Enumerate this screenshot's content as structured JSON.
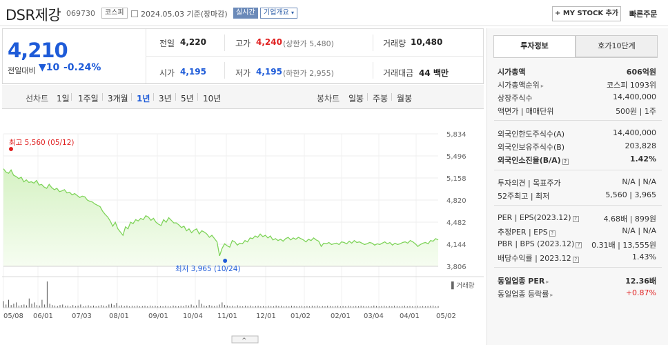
{
  "header": {
    "name": "DSR제강",
    "code": "069730",
    "market": "코스피",
    "date_text": "2024.05.03  기준(장마감)",
    "realtime": "실시간",
    "company_overview": "기업개요",
    "mystock": "+ MY STOCK 추가",
    "quick_order": "빠른주문"
  },
  "summary": {
    "price": "4,210",
    "change_label": "전일대비",
    "change": "10",
    "change_pct": "-0.24%",
    "prev_label": "전일",
    "prev": "4,220",
    "high_label": "고가",
    "high": "4,240",
    "upper_limit": "(상한가 5,480)",
    "volume_label": "거래량",
    "volume": "10,480",
    "open_label": "시가",
    "open": "4,195",
    "low_label": "저가",
    "low": "4,195",
    "lower_limit": "(하한가 2,955)",
    "amount_label": "거래대금",
    "amount": "44 백만"
  },
  "tabs": {
    "line_chart": "선차트",
    "periods": [
      "1일",
      "1주일",
      "3개월",
      "1년",
      "3년",
      "5년",
      "10년"
    ],
    "selected": "1년",
    "candle_chart": "봉차트",
    "candles": [
      "일봉",
      "주봉",
      "월봉"
    ]
  },
  "chart_data": {
    "type": "area",
    "y_ticks": [
      "5,834",
      "5,496",
      "5,158",
      "4,820",
      "4,482",
      "4,144",
      "3,806"
    ],
    "ylim": [
      3806,
      5834
    ],
    "x_ticks": [
      "05/08",
      "06/01",
      "07/03",
      "08/01",
      "09/01",
      "10/04",
      "11/01",
      "12/01",
      "01/02",
      "02/01",
      "03/04",
      "04/01",
      "05/02"
    ],
    "high_label": "최고 5,560 (05/12)",
    "low_label": "최저 3,965 (10/24)",
    "volume_label": "거래량",
    "series": [
      {
        "values": [
          5300,
          5250,
          5230,
          5280,
          5200,
          5180,
          5150,
          5170,
          5100,
          5130,
          5090,
          5100,
          5080,
          5120,
          5050,
          5060,
          5020,
          5000,
          5060,
          5010,
          4980,
          5000,
          4950,
          4960,
          4980,
          4930,
          4940,
          4900,
          4920,
          4890,
          4860,
          4880,
          4870,
          4820,
          4800,
          4790,
          4760,
          4740,
          4720,
          4650,
          4600,
          4560,
          4500,
          4420,
          4480,
          4380,
          4330,
          4280,
          4410,
          4380,
          4480,
          4460,
          4520,
          4500,
          4540,
          4520,
          4580,
          4560,
          4510,
          4540,
          4480,
          4450,
          4430,
          4520,
          4480,
          4550,
          4510,
          4470,
          4470,
          4440,
          4400,
          4420,
          4350,
          4380,
          4320,
          4360,
          4380,
          4300,
          4350,
          4330,
          4300,
          4250,
          4280,
          4230,
          4180,
          3965,
          4080,
          4150,
          4120,
          4100,
          4200,
          4180,
          4130,
          4160,
          4150,
          4200,
          4180,
          4240,
          4230,
          4270,
          4250,
          4300,
          4260,
          4280,
          4240,
          4270,
          4210,
          4230,
          4200,
          4220,
          4190,
          4230,
          4250,
          4210,
          4240,
          4220,
          4250,
          4230,
          4210,
          4180,
          4220,
          4200,
          4240,
          4210,
          4190,
          4110,
          4160,
          4150,
          4170,
          4140,
          4150,
          4160,
          4140,
          4180,
          4170,
          4150,
          4190,
          4160,
          4200,
          4170,
          4180,
          4160,
          4140,
          4150,
          4170,
          4160,
          4130,
          4150,
          4140,
          4160,
          4180,
          4150,
          4170,
          4130,
          4160,
          4140,
          4150,
          4170,
          4180,
          4160,
          4200,
          4180,
          4150,
          4110,
          4140,
          4160,
          4170,
          4150,
          4200,
          4190,
          4230,
          4210
        ]
      }
    ],
    "volume": [
      0.25,
      0.12,
      0.3,
      0.1,
      0.15,
      0.2,
      0.08,
      0.1,
      0.12,
      0.09,
      0.35,
      0.15,
      0.2,
      0.1,
      0.08,
      0.3,
      0.12,
      1.0,
      0.15,
      0.1,
      0.08,
      0.06,
      0.1,
      0.12,
      0.07,
      0.08,
      0.05,
      0.1,
      0.06,
      0.08,
      0.12,
      0.05,
      0.07,
      0.09,
      0.06,
      0.08,
      0.05,
      0.07,
      0.1,
      0.08,
      0.06,
      0.12,
      0.15,
      0.1,
      0.18,
      0.07,
      0.09,
      0.06,
      0.08,
      0.05,
      0.07,
      0.06,
      0.08,
      0.05,
      0.06,
      0.07,
      0.05,
      0.08,
      0.06,
      0.07,
      0.05,
      0.06,
      0.05,
      0.07,
      0.06,
      0.05,
      0.08,
      0.06,
      0.05,
      0.07,
      0.06,
      0.1,
      0.08,
      0.12,
      0.07,
      0.09,
      0.3,
      0.15,
      0.08,
      0.06,
      0.1,
      0.07,
      0.06,
      0.08,
      0.12,
      0.2,
      0.1,
      0.08,
      0.06,
      0.07,
      0.05,
      0.09,
      0.06,
      0.05,
      0.07,
      0.06,
      0.08,
      0.05,
      0.06,
      0.07,
      0.05,
      0.06,
      0.05,
      0.07,
      0.06,
      0.05,
      0.08,
      0.06,
      0.07,
      0.05,
      0.06,
      0.05,
      0.07,
      0.06,
      0.05,
      0.06,
      0.07,
      0.05,
      0.06,
      0.05,
      0.07,
      0.06,
      0.08,
      0.05,
      0.06,
      0.05,
      0.07,
      0.06,
      0.05,
      0.06,
      0.07,
      0.05,
      0.06,
      0.05,
      0.07,
      0.06,
      0.05,
      0.06,
      0.05,
      0.07,
      0.06,
      0.05,
      0.06,
      0.05,
      0.08,
      0.06,
      0.05,
      0.06,
      0.07,
      0.05,
      0.06,
      0.05,
      0.07,
      0.06,
      0.05,
      0.06,
      0.07,
      0.05,
      0.06,
      0.05,
      0.06,
      0.07,
      0.05,
      0.06,
      0.05,
      0.06,
      0.07,
      0.08,
      0.05,
      0.06
    ],
    "colors": {
      "line": "#7fd45a",
      "fill_top": "#d6f2c4",
      "fill_bottom": "#f6fdf1",
      "high": "#e02020",
      "low": "#1e5bd8",
      "volume": "#555555"
    }
  },
  "panel": {
    "tab_active": "투자정보",
    "tab_other": "호가10단계",
    "market_cap_label": "시가총액",
    "market_cap": "606억원",
    "cap_rank_label": "시가총액순위",
    "cap_rank": "코스피 1093위",
    "shares_label": "상장주식수",
    "shares": "14,400,000",
    "par_label": "액면가 | 매매단위",
    "par": "500원 | 1주",
    "foreign_limit_label": "외국인한도주식수(A)",
    "foreign_limit": "14,400,000",
    "foreign_hold_label": "외국인보유주식수(B)",
    "foreign_hold": "203,828",
    "foreign_ratio_label": "외국인소진율(B/A)",
    "foreign_ratio": "1.42%",
    "opinion_label": "투자의견 | 목표주가",
    "opinion": "N/A | N/A",
    "week52_label": "52주최고 | 최저",
    "week52": "5,560 | 3,965",
    "per_label": "PER | EPS(2023.12)",
    "per": "4.68배 | 899원",
    "est_per_label": "추정PER | EPS",
    "est_per": "N/A | N/A",
    "pbr_label": "PBR | BPS (2023.12)",
    "pbr": "0.31배 | 13,555원",
    "dividend_label": "배당수익률 | 2023.12",
    "dividend": "1.43%",
    "sector_per_label": "동일업종 PER",
    "sector_per": "12.36배",
    "sector_chg_label": "동일업종 등락률",
    "sector_chg": "+0.87%"
  }
}
